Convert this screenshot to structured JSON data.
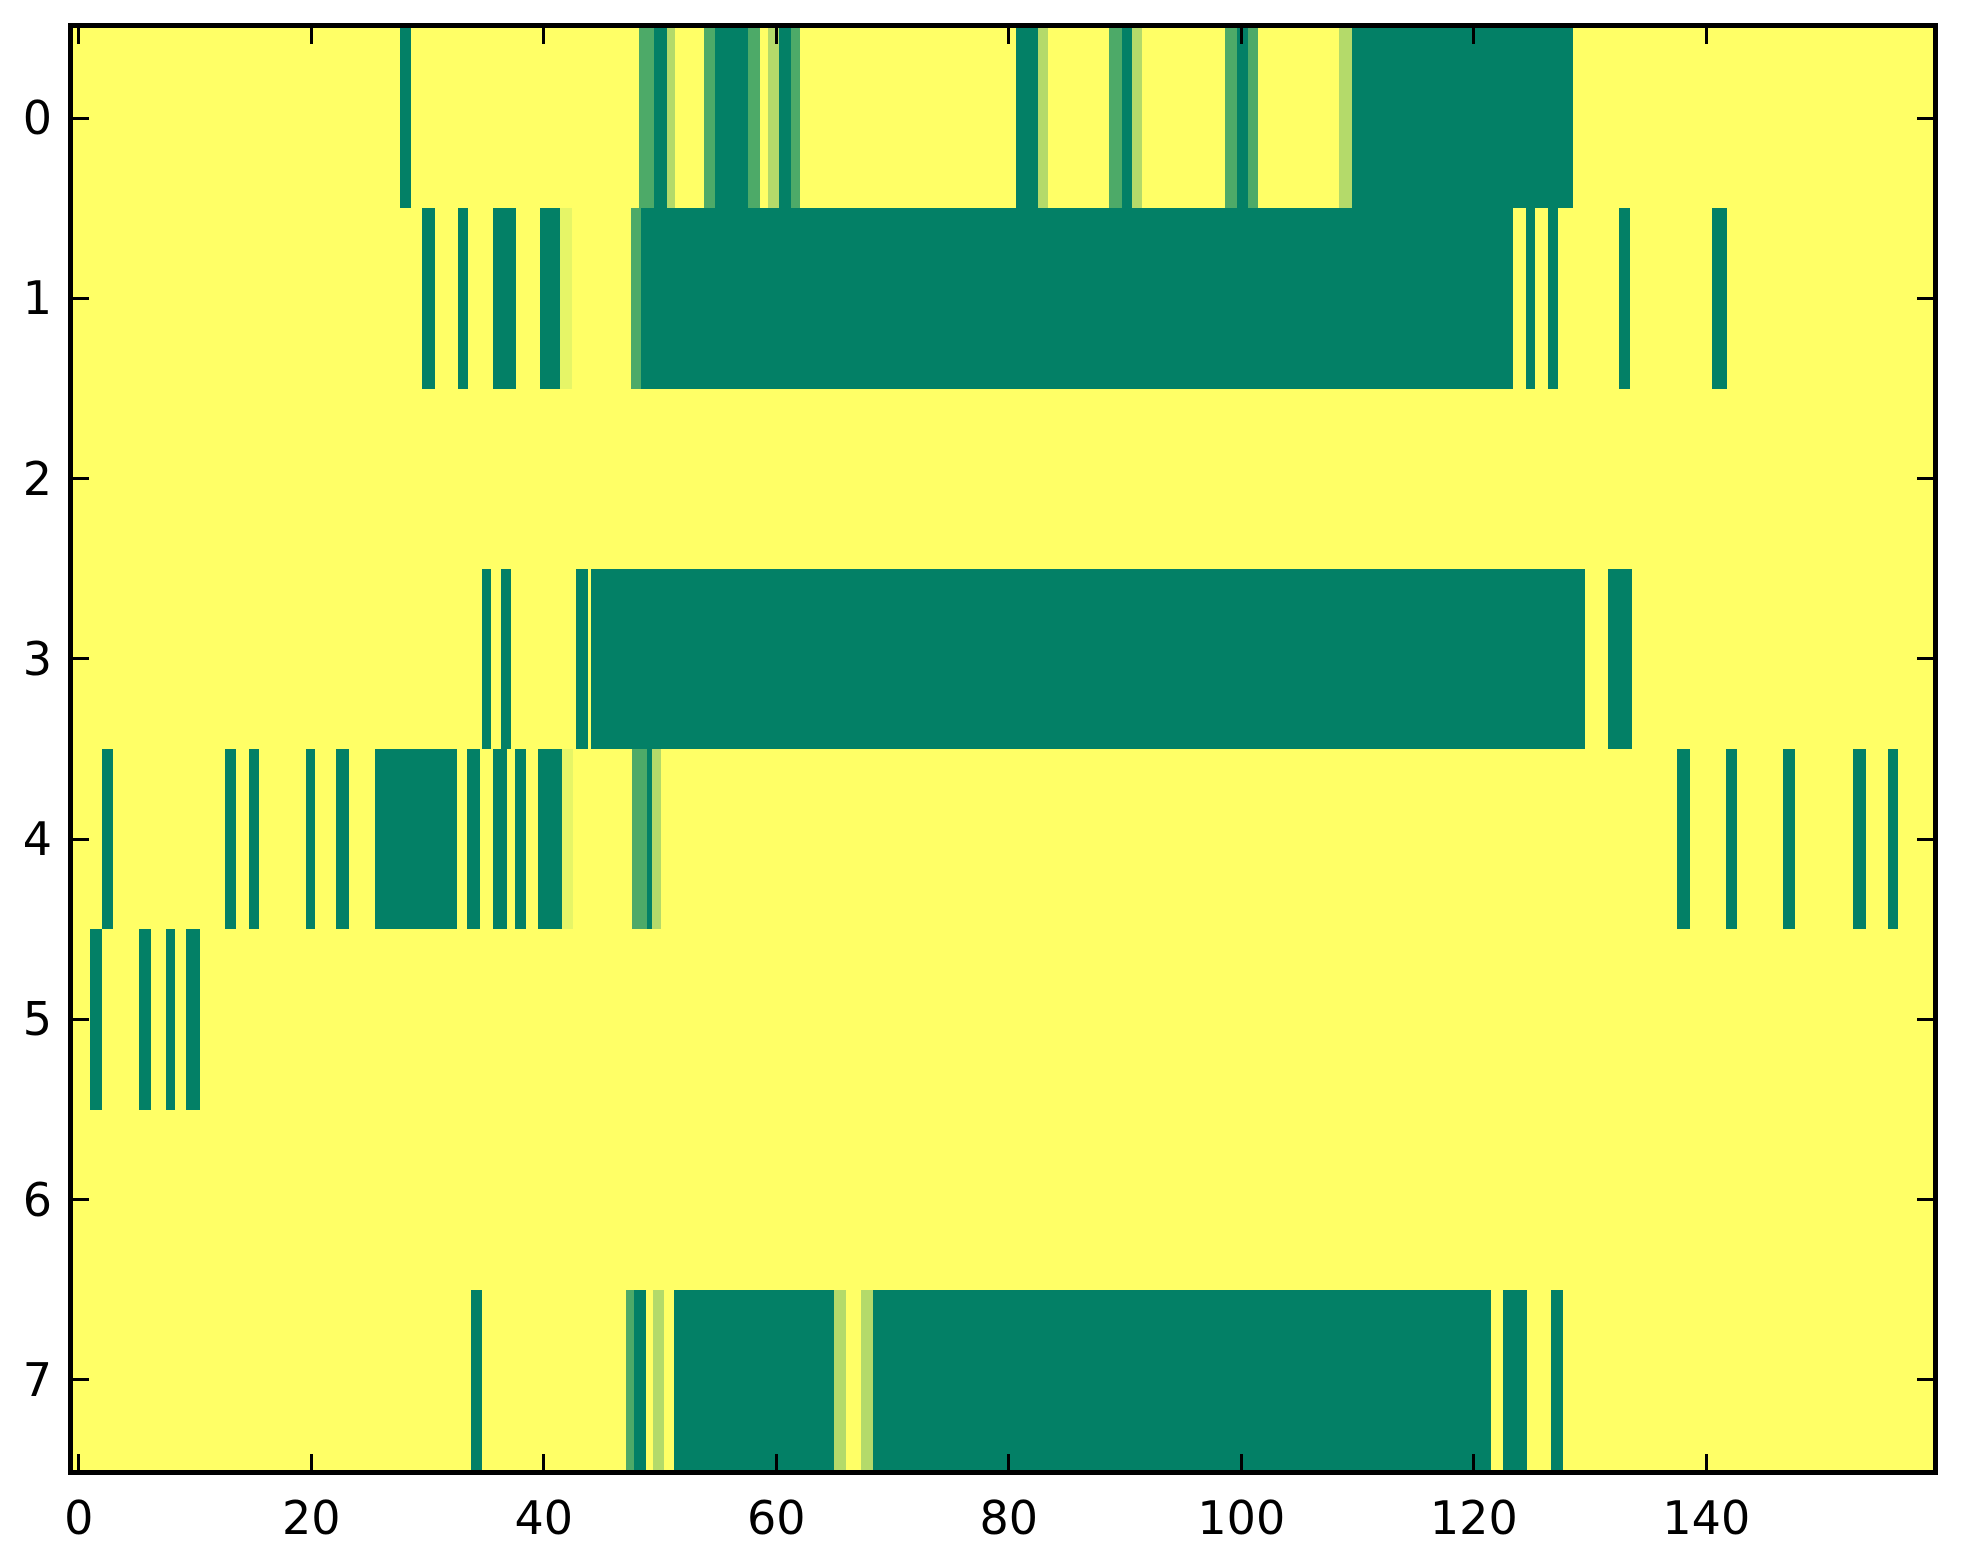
{
  "chart_data": {
    "type": "heatmap",
    "x_tick_labels": [
      "0",
      "20",
      "40",
      "60",
      "80",
      "100",
      "120",
      "140"
    ],
    "x_ticks": [
      0,
      20,
      40,
      60,
      80,
      100,
      120,
      140
    ],
    "y_tick_labels": [
      "0",
      "1",
      "2",
      "3",
      "4",
      "5",
      "6",
      "7"
    ],
    "xlim": [
      -0.5,
      159.5
    ],
    "n_rows": 8,
    "grid": false,
    "legend": null,
    "palette": {
      "background": "#FFFF66",
      "dark": "#038066",
      "mid": "#4DAA68",
      "light": "#B4DA6A",
      "pale": "#E6F567"
    },
    "rows": [
      {
        "y": "0",
        "segments": [
          [
            27.6,
            28.6,
            "dark"
          ],
          [
            48.2,
            49.5,
            "mid"
          ],
          [
            49.5,
            50.6,
            "dark"
          ],
          [
            50.6,
            51.3,
            "light"
          ],
          [
            53.8,
            54.7,
            "mid"
          ],
          [
            54.7,
            57.6,
            "dark"
          ],
          [
            57.6,
            58.6,
            "mid"
          ],
          [
            59.3,
            60.2,
            "light"
          ],
          [
            60.2,
            61.3,
            "dark"
          ],
          [
            61.3,
            62.0,
            "mid"
          ],
          [
            80.6,
            82.5,
            "dark"
          ],
          [
            82.5,
            83.4,
            "light"
          ],
          [
            88.6,
            89.7,
            "mid"
          ],
          [
            89.7,
            90.6,
            "dark"
          ],
          [
            90.6,
            91.5,
            "light"
          ],
          [
            98.6,
            99.6,
            "mid"
          ],
          [
            99.6,
            100.6,
            "dark"
          ],
          [
            100.6,
            101.4,
            "mid"
          ],
          [
            108.4,
            109.5,
            "light"
          ],
          [
            109.5,
            128.5,
            "dark"
          ]
        ]
      },
      {
        "y": "1",
        "segments": [
          [
            29.5,
            30.6,
            "dark"
          ],
          [
            32.6,
            33.5,
            "dark"
          ],
          [
            35.6,
            37.6,
            "dark"
          ],
          [
            39.7,
            41.4,
            "dark"
          ],
          [
            41.4,
            42.4,
            "pale"
          ],
          [
            47.5,
            48.4,
            "mid"
          ],
          [
            48.4,
            123.4,
            "dark"
          ],
          [
            124.5,
            125.3,
            "dark"
          ],
          [
            126.4,
            127.2,
            "dark"
          ],
          [
            132.5,
            133.4,
            "dark"
          ],
          [
            140.5,
            141.8,
            "dark"
          ]
        ]
      },
      {
        "y": "2",
        "segments": []
      },
      {
        "y": "3",
        "segments": [
          [
            34.7,
            35.5,
            "dark"
          ],
          [
            36.3,
            37.2,
            "dark"
          ],
          [
            42.8,
            43.8,
            "dark"
          ],
          [
            44.1,
            129.6,
            "dark"
          ],
          [
            131.5,
            133.6,
            "dark"
          ]
        ]
      },
      {
        "y": "4",
        "segments": [
          [
            2.0,
            2.9,
            "dark"
          ],
          [
            12.6,
            13.5,
            "dark"
          ],
          [
            14.6,
            15.5,
            "dark"
          ],
          [
            19.5,
            20.3,
            "dark"
          ],
          [
            22.1,
            23.2,
            "dark"
          ],
          [
            25.5,
            32.5,
            "dark"
          ],
          [
            33.4,
            34.5,
            "dark"
          ],
          [
            35.6,
            36.8,
            "dark"
          ],
          [
            37.5,
            38.5,
            "dark"
          ],
          [
            39.5,
            41.6,
            "dark"
          ],
          [
            41.6,
            42.5,
            "pale"
          ],
          [
            47.6,
            48.9,
            "mid"
          ],
          [
            48.9,
            49.3,
            "dark"
          ],
          [
            49.3,
            50.1,
            "light"
          ],
          [
            137.5,
            138.6,
            "dark"
          ],
          [
            141.7,
            142.6,
            "dark"
          ],
          [
            146.6,
            147.6,
            "dark"
          ],
          [
            152.6,
            153.7,
            "dark"
          ],
          [
            155.6,
            156.5,
            "dark"
          ]
        ]
      },
      {
        "y": "5",
        "segments": [
          [
            1.0,
            2.0,
            "dark"
          ],
          [
            5.2,
            6.2,
            "dark"
          ],
          [
            7.5,
            8.3,
            "dark"
          ],
          [
            9.2,
            10.4,
            "dark"
          ]
        ]
      },
      {
        "y": "6",
        "segments": []
      },
      {
        "y": "7",
        "segments": [
          [
            33.7,
            34.7,
            "dark"
          ],
          [
            47.1,
            47.8,
            "mid"
          ],
          [
            47.8,
            48.8,
            "dark"
          ],
          [
            49.4,
            50.3,
            "light"
          ],
          [
            51.2,
            65.0,
            "dark"
          ],
          [
            65.0,
            66.0,
            "light"
          ],
          [
            67.3,
            68.3,
            "light"
          ],
          [
            68.3,
            121.5,
            "dark"
          ],
          [
            122.5,
            124.6,
            "dark"
          ],
          [
            126.6,
            127.7,
            "dark"
          ]
        ]
      }
    ]
  }
}
